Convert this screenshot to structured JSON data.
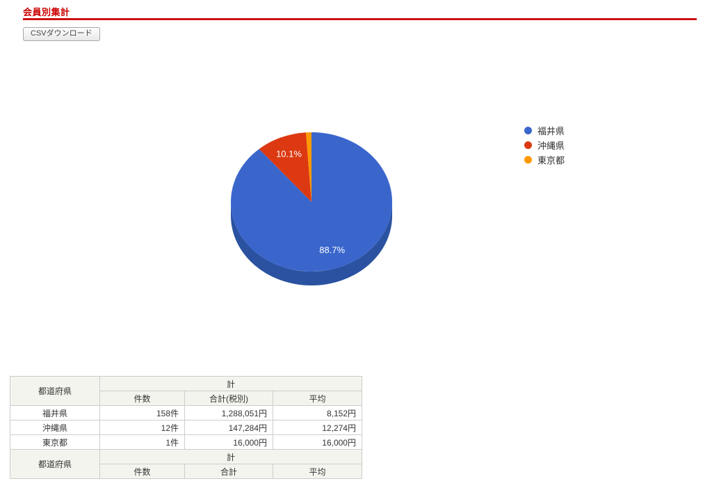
{
  "page": {
    "title": "会員別集計",
    "accent_color": "#cc0000"
  },
  "toolbar": {
    "csv_button_label": "CSVダウンロード"
  },
  "chart_data": {
    "type": "pie",
    "is3d": true,
    "legend_position": "right",
    "labels": [
      "福井県",
      "沖縄県",
      "東京都"
    ],
    "values": [
      1288051,
      147284,
      16000
    ],
    "percents": [
      88.7,
      10.1,
      1.1
    ],
    "percent_labels": [
      "88.7%",
      "10.1%",
      ""
    ],
    "colors": [
      "#3a66cc",
      "#dc3912",
      "#ff9900"
    ],
    "side_color": "#2a52a0",
    "label_color": "#ffffff"
  },
  "legend": {
    "items": [
      {
        "label": "福井県",
        "color": "#3a66cc"
      },
      {
        "label": "沖縄県",
        "color": "#dc3912"
      },
      {
        "label": "東京都",
        "color": "#ff9900"
      }
    ]
  },
  "table": {
    "header": {
      "prefecture": "都道府県",
      "total_group": "計",
      "count": "件数",
      "sum": "合計(税別)",
      "average": "平均"
    },
    "rows": [
      {
        "prefecture": "福井県",
        "count": "158件",
        "sum": "1,288,051円",
        "average": "8,152円"
      },
      {
        "prefecture": "沖縄県",
        "count": "12件",
        "sum": "147,284円",
        "average": "12,274円"
      },
      {
        "prefecture": "東京都",
        "count": "1件",
        "sum": "16,000円",
        "average": "16,000円"
      }
    ],
    "footer": {
      "prefecture": "都道府県",
      "total_group": "計",
      "count": "件数",
      "sum": "合計",
      "average": "平均"
    }
  }
}
